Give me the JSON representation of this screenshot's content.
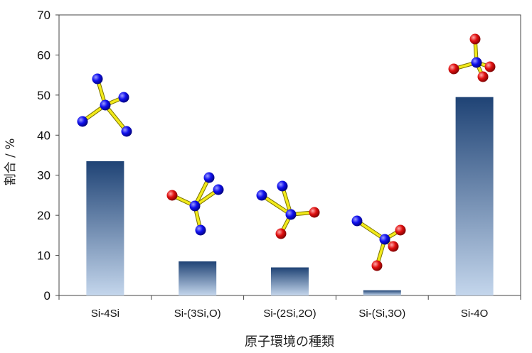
{
  "chart_data": {
    "type": "bar",
    "categories": [
      "Si-4Si",
      "Si-(3Si,O)",
      "Si-(2Si,2O)",
      "Si-(Si,3O)",
      "Si-4O"
    ],
    "values": [
      33.5,
      8.5,
      7.0,
      1.3,
      49.5
    ],
    "xlabel": "原子環境の種類",
    "ylabel": "割合 / %",
    "ylim": [
      0,
      70
    ],
    "yticks": [
      "0",
      "10",
      "20",
      "30",
      "40",
      "50",
      "60",
      "70"
    ],
    "grid": false,
    "legend": "none",
    "bar_gradient": {
      "top": "#1f4375",
      "bottom": "#c4d6ec"
    },
    "atom_colors": {
      "Si": "#1010ee",
      "O": "#e01010",
      "bond": "#f2ea1a"
    },
    "insets": [
      {
        "category": "Si-4Si",
        "neighbors": [
          "Si",
          "Si",
          "Si",
          "Si"
        ]
      },
      {
        "category": "Si-(3Si,O)",
        "neighbors": [
          "Si",
          "Si",
          "Si",
          "O"
        ]
      },
      {
        "category": "Si-(2Si,2O)",
        "neighbors": [
          "Si",
          "Si",
          "O",
          "O"
        ]
      },
      {
        "category": "Si-(Si,3O)",
        "neighbors": [
          "Si",
          "O",
          "O",
          "O"
        ]
      },
      {
        "category": "Si-4O",
        "neighbors": [
          "O",
          "O",
          "O",
          "O"
        ]
      }
    ]
  }
}
